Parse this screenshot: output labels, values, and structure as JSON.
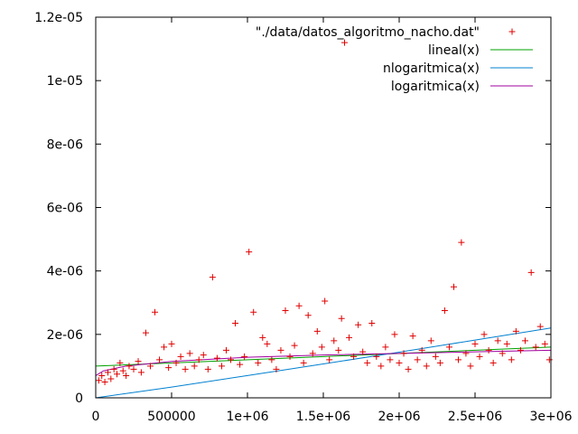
{
  "chart_data": {
    "type": "scatter",
    "title": "",
    "xlabel": "",
    "ylabel": "",
    "xlim": [
      0,
      3000000
    ],
    "ylim": [
      0,
      1.2e-05
    ],
    "grid": false,
    "legend_position": "top-right",
    "x_ticks": [
      0,
      500000,
      1000000,
      1500000,
      2000000,
      2500000,
      3000000
    ],
    "x_tick_labels": [
      "0",
      "500000",
      "1e+06",
      "1.5e+06",
      "2e+06",
      "2.5e+06",
      "3e+06"
    ],
    "y_ticks": [
      0,
      2e-06,
      4e-06,
      6e-06,
      8e-06,
      1e-05,
      1.2e-05
    ],
    "y_tick_labels": [
      "0",
      "2e-06",
      "4e-06",
      "6e-06",
      "8e-06",
      "1e-05",
      "1.2e-05"
    ],
    "series": [
      {
        "name": "\"./data/datos_algoritmo_nacho.dat\"",
        "kind": "points",
        "marker": "+",
        "color": "#e00000",
        "points": [
          [
            20000,
            5.5e-07
          ],
          [
            40000,
            7e-07
          ],
          [
            60000,
            5e-07
          ],
          [
            80000,
            8e-07
          ],
          [
            100000,
            6e-07
          ],
          [
            120000,
            9e-07
          ],
          [
            140000,
            7.5e-07
          ],
          [
            160000,
            1.1e-06
          ],
          [
            180000,
            8.5e-07
          ],
          [
            200000,
            7e-07
          ],
          [
            220000,
            1e-06
          ],
          [
            250000,
            9e-07
          ],
          [
            280000,
            1.15e-06
          ],
          [
            300000,
            8e-07
          ],
          [
            330000,
            2.05e-06
          ],
          [
            360000,
            1e-06
          ],
          [
            390000,
            2.7e-06
          ],
          [
            420000,
            1.2e-06
          ],
          [
            450000,
            1.6e-06
          ],
          [
            480000,
            9.5e-07
          ],
          [
            500000,
            1.7e-06
          ],
          [
            530000,
            1.1e-06
          ],
          [
            560000,
            1.3e-06
          ],
          [
            590000,
            9e-07
          ],
          [
            620000,
            1.4e-06
          ],
          [
            650000,
            1e-06
          ],
          [
            680000,
            1.2e-06
          ],
          [
            710000,
            1.35e-06
          ],
          [
            740000,
            9e-07
          ],
          [
            770000,
            3.8e-06
          ],
          [
            800000,
            1.25e-06
          ],
          [
            830000,
            1e-06
          ],
          [
            860000,
            1.5e-06
          ],
          [
            890000,
            1.2e-06
          ],
          [
            920000,
            2.35e-06
          ],
          [
            950000,
            1.05e-06
          ],
          [
            980000,
            1.3e-06
          ],
          [
            1010000,
            4.6e-06
          ],
          [
            1040000,
            2.7e-06
          ],
          [
            1070000,
            1.1e-06
          ],
          [
            1100000,
            1.9e-06
          ],
          [
            1130000,
            1.7e-06
          ],
          [
            1160000,
            1.2e-06
          ],
          [
            1190000,
            9e-07
          ],
          [
            1220000,
            1.5e-06
          ],
          [
            1250000,
            2.75e-06
          ],
          [
            1280000,
            1.3e-06
          ],
          [
            1310000,
            1.65e-06
          ],
          [
            1340000,
            2.9e-06
          ],
          [
            1370000,
            1.1e-06
          ],
          [
            1400000,
            2.6e-06
          ],
          [
            1430000,
            1.4e-06
          ],
          [
            1460000,
            2.1e-06
          ],
          [
            1490000,
            1.6e-06
          ],
          [
            1510000,
            3.05e-06
          ],
          [
            1540000,
            1.2e-06
          ],
          [
            1570000,
            1.8e-06
          ],
          [
            1600000,
            1.5e-06
          ],
          [
            1620000,
            2.5e-06
          ],
          [
            1640000,
            1.12e-05
          ],
          [
            1670000,
            1.9e-06
          ],
          [
            1700000,
            1.3e-06
          ],
          [
            1730000,
            2.3e-06
          ],
          [
            1760000,
            1.45e-06
          ],
          [
            1790000,
            1.1e-06
          ],
          [
            1820000,
            2.35e-06
          ],
          [
            1850000,
            1.3e-06
          ],
          [
            1880000,
            1e-06
          ],
          [
            1910000,
            1.6e-06
          ],
          [
            1940000,
            1.2e-06
          ],
          [
            1970000,
            2e-06
          ],
          [
            2000000,
            1.1e-06
          ],
          [
            2030000,
            1.4e-06
          ],
          [
            2060000,
            9e-07
          ],
          [
            2090000,
            1.95e-06
          ],
          [
            2120000,
            1.2e-06
          ],
          [
            2150000,
            1.5e-06
          ],
          [
            2180000,
            1e-06
          ],
          [
            2210000,
            1.8e-06
          ],
          [
            2240000,
            1.3e-06
          ],
          [
            2270000,
            1.1e-06
          ],
          [
            2300000,
            2.75e-06
          ],
          [
            2330000,
            1.6e-06
          ],
          [
            2360000,
            3.5e-06
          ],
          [
            2390000,
            1.2e-06
          ],
          [
            2410000,
            4.9e-06
          ],
          [
            2440000,
            1.4e-06
          ],
          [
            2470000,
            1e-06
          ],
          [
            2500000,
            1.7e-06
          ],
          [
            2530000,
            1.3e-06
          ],
          [
            2560000,
            2e-06
          ],
          [
            2590000,
            1.5e-06
          ],
          [
            2620000,
            1.1e-06
          ],
          [
            2650000,
            1.8e-06
          ],
          [
            2680000,
            1.4e-06
          ],
          [
            2710000,
            1.7e-06
          ],
          [
            2740000,
            1.2e-06
          ],
          [
            2770000,
            2.1e-06
          ],
          [
            2800000,
            1.5e-06
          ],
          [
            2830000,
            1.8e-06
          ],
          [
            2870000,
            3.95e-06
          ],
          [
            2900000,
            1.6e-06
          ],
          [
            2930000,
            2.25e-06
          ],
          [
            2960000,
            1.7e-06
          ],
          [
            2990000,
            1.2e-06
          ]
        ]
      },
      {
        "name": "lineal(x)",
        "kind": "line",
        "color": "#00a000",
        "x": [
          0,
          3000000
        ],
        "y": [
          1e-06,
          1.6e-06
        ]
      },
      {
        "name": "nlogaritmica(x)",
        "kind": "line",
        "color": "#0080d0",
        "x": [
          0,
          500000,
          1000000,
          1500000,
          2000000,
          2500000,
          3000000
        ],
        "y": [
          0,
          3.4e-07,
          7e-07,
          1.07e-06,
          1.44e-06,
          1.82e-06,
          2.2e-06
        ]
      },
      {
        "name": "logaritmica(x)",
        "kind": "line",
        "color": "#a000a0",
        "x": [
          0,
          50000,
          200000,
          500000,
          1000000,
          1500000,
          2000000,
          2500000,
          3000000
        ],
        "y": [
          7e-07,
          8.5e-07,
          1e-06,
          1.15e-06,
          1.28e-06,
          1.35e-06,
          1.4e-06,
          1.45e-06,
          1.5e-06
        ]
      }
    ]
  }
}
